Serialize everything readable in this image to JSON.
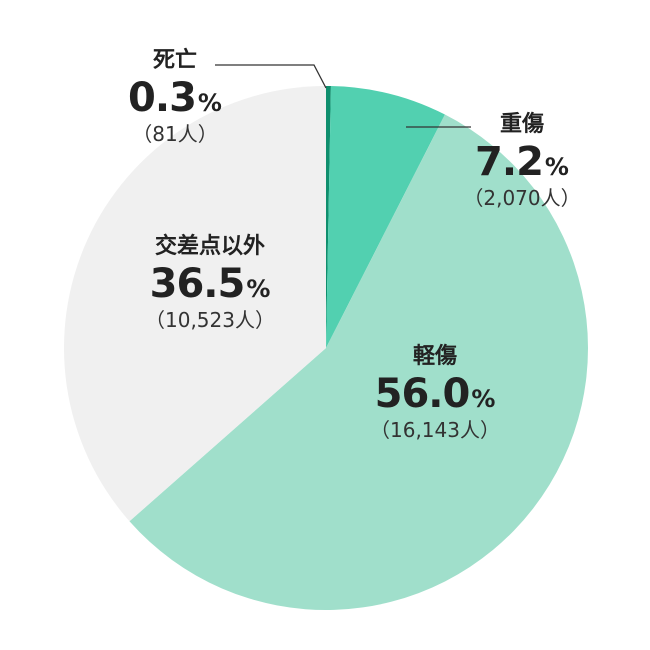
{
  "chart_data": {
    "type": "pie",
    "slices": [
      {
        "label": "死亡",
        "value": 0.3,
        "percent_text": "0.3",
        "count_text": "（81人）",
        "color": "#0f8f6e"
      },
      {
        "label": "重傷",
        "value": 7.2,
        "percent_text": "7.2",
        "count_text": "（2,070人）",
        "color": "#52d0b0"
      },
      {
        "label": "軽傷",
        "value": 56.0,
        "percent_text": "56.0",
        "count_text": "（16,143人）",
        "color": "#a0dfcb"
      },
      {
        "label": "交差点以外",
        "value": 36.5,
        "percent_text": "36.5",
        "count_text": "（10,523人）",
        "color": "#f0f0f0"
      }
    ],
    "percent_unit": "%",
    "leader_line_color": "#333333"
  }
}
